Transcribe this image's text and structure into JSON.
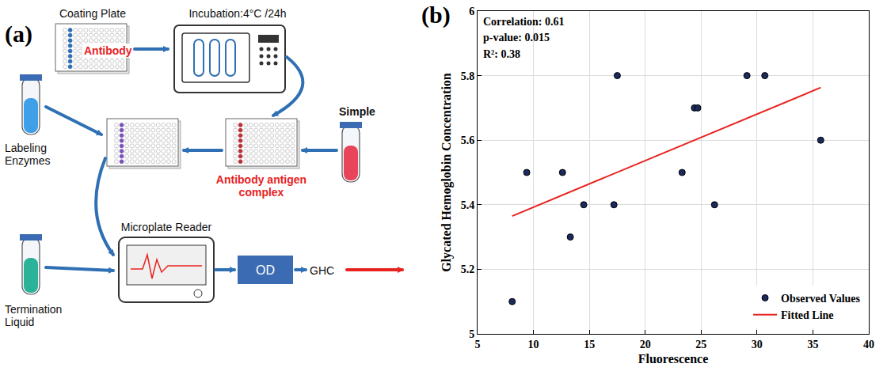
{
  "panel_labels": [
    "(a)",
    "(b)"
  ],
  "diagram": {
    "coating_plate": "Coating Plate",
    "antibody": "Antibody",
    "incubation": "Incubation:4°C /24h",
    "labeling_enzymes": "Labeling Enzymes",
    "complex": "Antibody antigen complex",
    "sample": "Simple",
    "microplate_reader": "Microplate Reader",
    "termination_liquid": "Termination Liquid",
    "readout": "OD",
    "result": "GHC"
  },
  "chart_data": {
    "type": "scatter",
    "x_label": "Fluorescence",
    "y_label": "Glycated Hemoglobin Concentration",
    "annotations": [
      "Correlation: 0.61",
      "p-value: 0.015",
      "R²: 0.38"
    ],
    "series": [
      {
        "name": "Observed Values",
        "type": "scatter",
        "marker": "circle",
        "color": "#1b2a5c",
        "x": [
          8.1,
          9.4,
          12.6,
          13.3,
          14.5,
          17.2,
          17.5,
          23.3,
          24.4,
          24.7,
          26.2,
          29.1,
          30.7,
          35.7
        ],
        "values": [
          5.1,
          5.5,
          5.5,
          5.3,
          5.4,
          5.4,
          5.8,
          5.5,
          5.7,
          5.7,
          5.4,
          5.8,
          5.8,
          5.6
        ]
      },
      {
        "name": "Fitted Line",
        "type": "line",
        "line_style": "solid",
        "color": "#e8231f",
        "x": [
          8.1,
          35.7
        ],
        "values": [
          5.365,
          5.763
        ]
      }
    ],
    "xlim": [
      5,
      40
    ],
    "xticks": [
      5,
      10,
      15,
      20,
      25,
      30,
      35,
      40
    ],
    "ylim": [
      5,
      6
    ],
    "yticks": [
      5,
      5.2,
      5.4,
      5.6,
      5.8,
      6
    ],
    "grid": true,
    "legend": "lower right"
  }
}
